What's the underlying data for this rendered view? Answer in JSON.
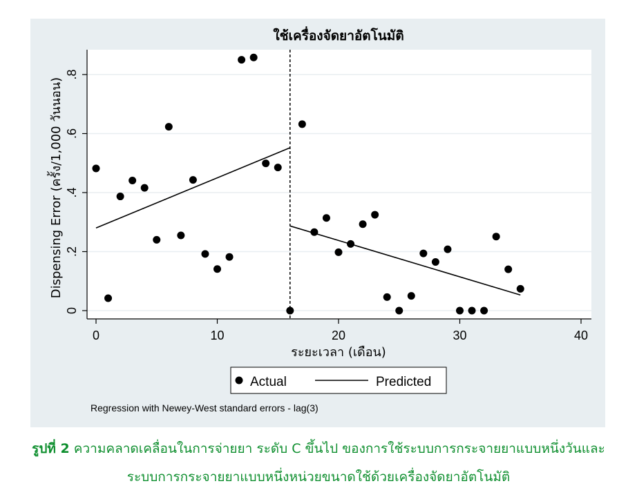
{
  "chart_data": {
    "type": "scatter",
    "title": "ใช้เครื่องจัดยาอัตโนมัติ",
    "xlabel": "ระยะเวลา (เดือน)",
    "ylabel": "Dispensing Error (ครั้ง/1,000 วันนอน)",
    "xlim": [
      0,
      40
    ],
    "ylim": [
      0,
      0.8
    ],
    "x_ticks": [
      0,
      10,
      20,
      30,
      40
    ],
    "x_tick_labels": [
      "0",
      "10",
      "20",
      "30",
      "40"
    ],
    "y_ticks": [
      0,
      0.2,
      0.4,
      0.6,
      0.8
    ],
    "y_tick_labels": [
      "0",
      ".2",
      ".4",
      ".6",
      ".8"
    ],
    "grid": true,
    "intervention_x": 16,
    "legend_position": "bottom",
    "series": [
      {
        "name": "Actual",
        "type": "scatter",
        "points": [
          [
            0,
            0.482
          ],
          [
            1,
            0.042
          ],
          [
            2,
            0.387
          ],
          [
            3,
            0.441
          ],
          [
            4,
            0.416
          ],
          [
            5,
            0.24
          ],
          [
            6,
            0.623
          ],
          [
            7,
            0.255
          ],
          [
            8,
            0.443
          ],
          [
            9,
            0.192
          ],
          [
            10,
            0.141
          ],
          [
            11,
            0.182
          ],
          [
            12,
            0.85
          ],
          [
            13,
            0.858
          ],
          [
            14,
            0.499
          ],
          [
            15,
            0.485
          ],
          [
            16,
            0.0
          ],
          [
            17,
            0.632
          ],
          [
            18,
            0.266
          ],
          [
            19,
            0.314
          ],
          [
            20,
            0.198
          ],
          [
            21,
            0.226
          ],
          [
            22,
            0.293
          ],
          [
            23,
            0.325
          ],
          [
            24,
            0.046
          ],
          [
            25,
            0.0
          ],
          [
            26,
            0.05
          ],
          [
            27,
            0.194
          ],
          [
            28,
            0.165
          ],
          [
            29,
            0.208
          ],
          [
            30,
            0.0
          ],
          [
            31,
            0.0
          ],
          [
            32,
            0.0
          ],
          [
            33,
            0.251
          ],
          [
            34,
            0.14
          ],
          [
            35,
            0.074
          ]
        ]
      },
      {
        "name": "Predicted",
        "type": "line",
        "segments": [
          [
            [
              0,
              0.28
            ],
            [
              16,
              0.552
            ]
          ],
          [
            [
              16,
              0.287
            ],
            [
              35,
              0.053
            ]
          ]
        ]
      }
    ],
    "note": "Regression with Newey-West standard errors - lag(3)"
  },
  "caption": {
    "label": "รูปที่ 2",
    "line1": "ความคลาดเคลื่อนในการจ่ายยา ระดับ C ขึ้นไป ของการใช้ระบบการกระจายยาแบบหนึ่งวันและ",
    "line2": "ระบบการกระจายยาแบบหนึ่งหน่วยขนาดใช้ด้วยเครื่องจัดยาอัตโนมัติ"
  },
  "colors": {
    "panel_background": "#e8eef1",
    "plot_background": "#ffffff",
    "grid": "#e8eef1",
    "marks": "#000000",
    "caption": "#0f8f2f"
  }
}
